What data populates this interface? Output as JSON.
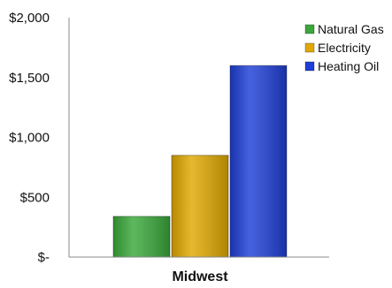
{
  "chart_data": {
    "type": "bar",
    "categories": [
      "Midwest"
    ],
    "series": [
      {
        "name": "Natural Gas",
        "values": [
          340
        ],
        "color": "#3aa83a"
      },
      {
        "name": "Electricity",
        "values": [
          850
        ],
        "color": "#e0a800"
      },
      {
        "name": "Heating Oil",
        "values": [
          1600
        ],
        "color": "#1f3fd6"
      }
    ],
    "ylim": [
      0,
      2000
    ],
    "yticks": [
      {
        "value": 0,
        "label": "$-"
      },
      {
        "value": 500,
        "label": "$500"
      },
      {
        "value": 1000,
        "label": "$1,000"
      },
      {
        "value": 1500,
        "label": "$1,500"
      },
      {
        "value": 2000,
        "label": "$2,000"
      }
    ],
    "grid": false,
    "legend_position": "top-right",
    "title": "",
    "xlabel": "",
    "ylabel": ""
  }
}
